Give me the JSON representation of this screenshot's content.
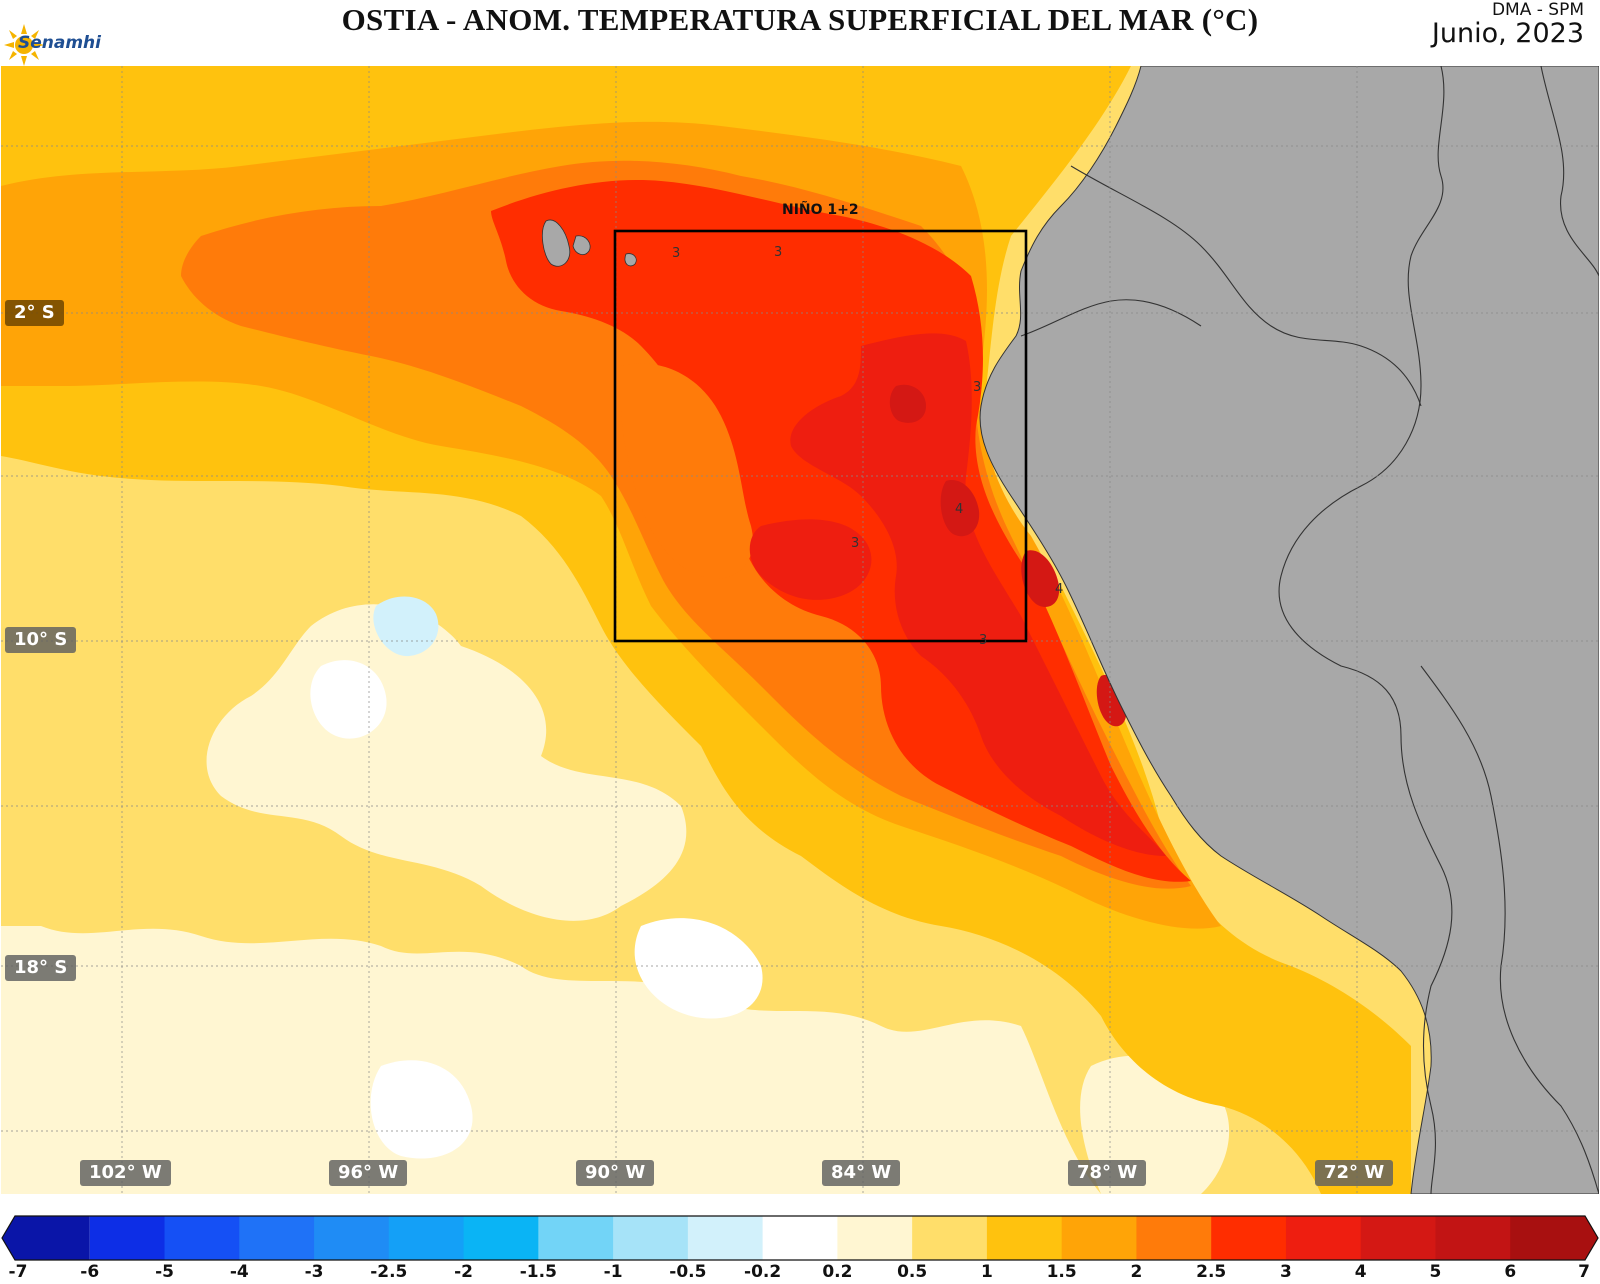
{
  "header": {
    "title": "OSTIA - ANOM. TEMPERATURA SUPERFICIAL DEL MAR (°C)",
    "agency": "DMA - SPM",
    "date": "Junio, 2023",
    "logo_text": "Senamhi"
  },
  "map": {
    "region_label": "NIÑO 1+2",
    "contour_labels": [
      "3",
      "3",
      "3",
      "3",
      "4",
      "4",
      "3"
    ],
    "lat_labels": [
      "2° S",
      "10° S",
      "18° S"
    ],
    "lon_labels": [
      "102° W",
      "96° W",
      "90° W",
      "84° W",
      "78° W",
      "72° W"
    ],
    "land_color": "#a8a8a8"
  },
  "colorbar": {
    "ticks": [
      "-7",
      "-6",
      "-5",
      "-4",
      "-3",
      "-2.5",
      "-2",
      "-1.5",
      "-1",
      "-0.5",
      "-0.2",
      "0.2",
      "0.5",
      "1",
      "1.5",
      "2",
      "2.5",
      "3",
      "4",
      "5",
      "6",
      "7"
    ],
    "colors": [
      "#0a15a8",
      "#0d2ee6",
      "#1550f5",
      "#1f72f7",
      "#1f8cf5",
      "#14a0f7",
      "#0ab4f5",
      "#72d4f7",
      "#a6e3f8",
      "#d2f1fb",
      "#ffffff",
      "#fff6d2",
      "#ffde6a",
      "#ffc20e",
      "#ffa407",
      "#ff7b0a",
      "#ff2d00",
      "#ee1e10",
      "#d41814",
      "#c21414",
      "#a81010"
    ]
  }
}
